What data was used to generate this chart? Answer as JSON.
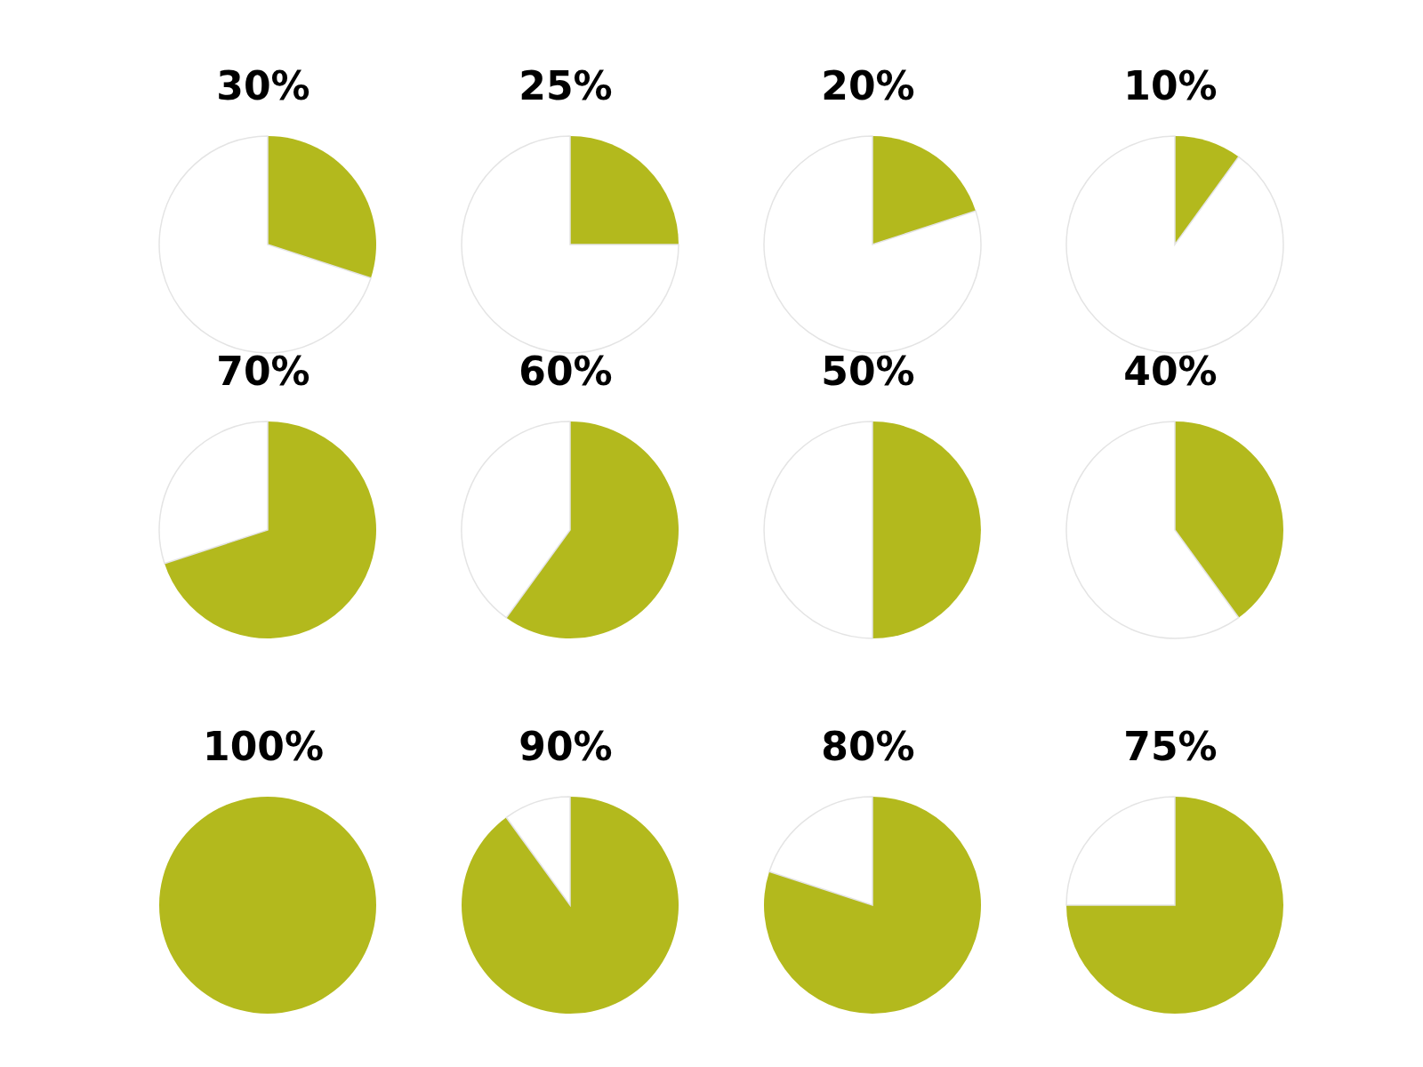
{
  "chart_data": [
    {
      "type": "pie",
      "title": "30%",
      "categories": [
        null,
        null
      ],
      "values": [
        30,
        70
      ],
      "colors": [
        "#b3b91d",
        "#ffffff"
      ]
    },
    {
      "type": "pie",
      "title": "25%",
      "categories": [
        null,
        null
      ],
      "values": [
        25,
        75
      ],
      "colors": [
        "#b3b91d",
        "#ffffff"
      ]
    },
    {
      "type": "pie",
      "title": "20%",
      "categories": [
        null,
        null
      ],
      "values": [
        20,
        80
      ],
      "colors": [
        "#b3b91d",
        "#ffffff"
      ]
    },
    {
      "type": "pie",
      "title": "10%",
      "categories": [
        null,
        null
      ],
      "values": [
        10,
        90
      ],
      "colors": [
        "#b3b91d",
        "#ffffff"
      ]
    },
    {
      "type": "pie",
      "title": "70%",
      "categories": [
        null,
        null
      ],
      "values": [
        70,
        30
      ],
      "colors": [
        "#b3b91d",
        "#ffffff"
      ]
    },
    {
      "type": "pie",
      "title": "60%",
      "categories": [
        null,
        null
      ],
      "values": [
        60,
        40
      ],
      "colors": [
        "#b3b91d",
        "#ffffff"
      ]
    },
    {
      "type": "pie",
      "title": "50%",
      "categories": [
        null,
        null
      ],
      "values": [
        50,
        50
      ],
      "colors": [
        "#b3b91d",
        "#ffffff"
      ]
    },
    {
      "type": "pie",
      "title": "40%",
      "categories": [
        null,
        null
      ],
      "values": [
        40,
        60
      ],
      "colors": [
        "#b3b91d",
        "#ffffff"
      ]
    },
    {
      "type": "pie",
      "title": "100%",
      "categories": [
        null,
        null
      ],
      "values": [
        100,
        0
      ],
      "colors": [
        "#b3b91d",
        "#ffffff"
      ]
    },
    {
      "type": "pie",
      "title": "90%",
      "categories": [
        null,
        null
      ],
      "values": [
        90,
        10
      ],
      "colors": [
        "#b3b91d",
        "#ffffff"
      ]
    },
    {
      "type": "pie",
      "title": "80%",
      "categories": [
        null,
        null
      ],
      "values": [
        80,
        20
      ],
      "colors": [
        "#b3b91d",
        "#ffffff"
      ]
    },
    {
      "type": "pie",
      "title": "75%",
      "categories": [
        null,
        null
      ],
      "values": [
        75,
        25
      ],
      "colors": [
        "#b3b91d",
        "#ffffff"
      ]
    }
  ]
}
